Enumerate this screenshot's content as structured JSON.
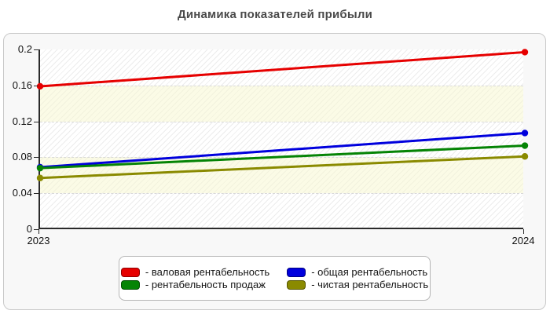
{
  "title": "Динамика показателей прибыли",
  "colors": {
    "card_background": "#f8f8f8",
    "card_border": "#c9c9c9",
    "plot_background": "#ffffff",
    "band_tint": "#f8f8d2",
    "gridline": "#d9d9d9",
    "axis": "#2a2a2a",
    "title_text": "#4a4a4a",
    "label_text": "#111111",
    "legend_background": "#ffffff",
    "legend_border": "#b5b5b5"
  },
  "chart_data": {
    "type": "line",
    "title": "Динамика показателей прибыли",
    "x": [
      2023,
      2024
    ],
    "x_tick_labels": [
      "2023",
      "2024"
    ],
    "ylim": [
      0,
      0.2
    ],
    "y_ticks": [
      0,
      0.04,
      0.08,
      0.12,
      0.16,
      0.2
    ],
    "y_tick_labels": [
      "0",
      "0.04",
      "0.08",
      "0.12",
      "0.16",
      "0.2"
    ],
    "grid": "horizontal-dashed",
    "plot_style": "diagonal-hatch with alternating cream bands",
    "legend_position": "bottom-center",
    "marker": "circle",
    "series": [
      {
        "name": "валовая рентабельность",
        "legend_label": "- валовая рентабельность",
        "color": "#e60000",
        "swatch_border": "#8f0000",
        "values": [
          0.159,
          0.197
        ]
      },
      {
        "name": "общая рентабельность",
        "legend_label": "- общая рентабельность",
        "color": "#0000dd",
        "swatch_border": "#000080",
        "values": [
          0.069,
          0.107
        ]
      },
      {
        "name": "рентабельность продаж",
        "legend_label": "- рентабельность продаж",
        "color": "#058405",
        "swatch_border": "#024d02",
        "values": [
          0.068,
          0.093
        ]
      },
      {
        "name": "чистая рентабельность",
        "legend_label": "- чистая рентабельность",
        "color": "#8a8a00",
        "swatch_border": "#555500",
        "values": [
          0.057,
          0.081
        ]
      }
    ]
  }
}
